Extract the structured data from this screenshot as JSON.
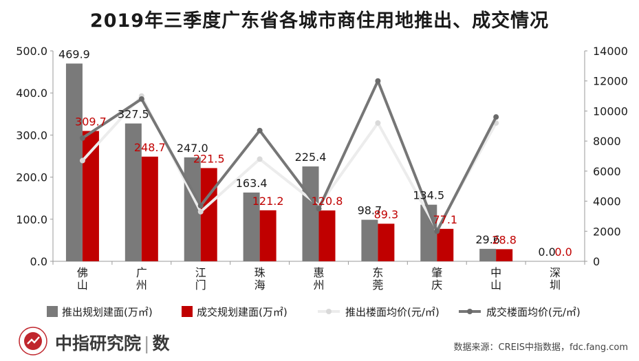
{
  "title": "2019年三季度广东省各城市商住用地推出、成交情况",
  "chart_data": {
    "type": "bar+line",
    "title": "2019年三季度广东省各城市商住用地推出、成交情况",
    "categories": [
      "佛山",
      "广州",
      "江门",
      "珠海",
      "惠州",
      "东莞",
      "肇庆",
      "中山",
      "深圳"
    ],
    "left_axis": {
      "min": 0,
      "max": 500,
      "step": 100,
      "tick_format": "0.0"
    },
    "right_axis": {
      "min": 0,
      "max": 14000,
      "step": 2000
    },
    "bar_series": [
      {
        "name": "推出规划建面(万㎡)",
        "color": "#7a7a7a",
        "label_color": "#1a1a1a",
        "values": [
          469.9,
          327.5,
          247.0,
          163.4,
          225.4,
          98.7,
          134.5,
          29.6,
          0.0
        ],
        "labels": [
          "469.9",
          "327.5",
          "247.0",
          "163.4",
          "225.4",
          "98.7",
          "134.5",
          "29.6",
          "0.0"
        ]
      },
      {
        "name": "成交规划建面(万㎡)",
        "color": "#c00000",
        "label_color": "#c00000",
        "values": [
          309.7,
          248.7,
          221.5,
          121.2,
          120.8,
          89.3,
          77.1,
          28.8,
          0.0
        ],
        "labels": [
          "309.7",
          "248.7",
          "221.5",
          "121.2",
          "120.8",
          "89.3",
          "77.1",
          "28.8",
          "0.0"
        ]
      }
    ],
    "line_series": [
      {
        "name": "推出楼面均价(元/㎡)",
        "color": "#ececec",
        "marker_color": "#d9d9d9",
        "values": [
          6700,
          11000,
          3300,
          6800,
          3700,
          9200,
          2100,
          9200,
          null
        ]
      },
      {
        "name": "成交楼面均价(元/㎡)",
        "color": "#767676",
        "marker_color": "#6a6a6a",
        "values": [
          8200,
          10800,
          3700,
          8700,
          3500,
          12000,
          2000,
          9600,
          null
        ]
      }
    ],
    "legend_position": "bottom",
    "grid": false
  },
  "footer": {
    "brand": "中指研究院",
    "brand_suffix": "数",
    "source": "数据来源：CREIS中指数据，fdc.fang.com"
  },
  "colors": {
    "logo_red": "#c0262d",
    "text_dark": "#1a1a1a"
  }
}
